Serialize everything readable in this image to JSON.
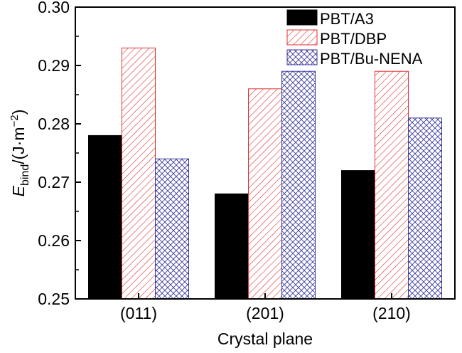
{
  "chart_data": {
    "type": "bar",
    "categories": [
      "(011)",
      "(201)",
      "(210)"
    ],
    "series": [
      {
        "name": "PBT/A3",
        "values": [
          0.278,
          0.268,
          0.272
        ],
        "fill": "#000000",
        "stroke": "#000000",
        "pattern": "solid"
      },
      {
        "name": "PBT/DBP",
        "values": [
          0.293,
          0.286,
          0.289
        ],
        "fill": "#ffffff",
        "stroke": "#e03030",
        "pattern": "hatch"
      },
      {
        "name": "PBT/Bu-NENA",
        "values": [
          0.274,
          0.289,
          0.281
        ],
        "fill": "#ffffff",
        "stroke": "#3a3a9a",
        "pattern": "crosshatch"
      }
    ],
    "xlabel": "Crystal plane",
    "ylabel_main": "E",
    "ylabel_sub": "bind",
    "ylabel_unit_pre": "/(J·m",
    "ylabel_unit_sup": "−2",
    "ylabel_unit_post": ")",
    "ylim": [
      0.25,
      0.3
    ],
    "yticks": [
      "0.25",
      "0.26",
      "0.27",
      "0.28",
      "0.29",
      "0.30"
    ],
    "legend_position": "top-right",
    "grid": false
  }
}
